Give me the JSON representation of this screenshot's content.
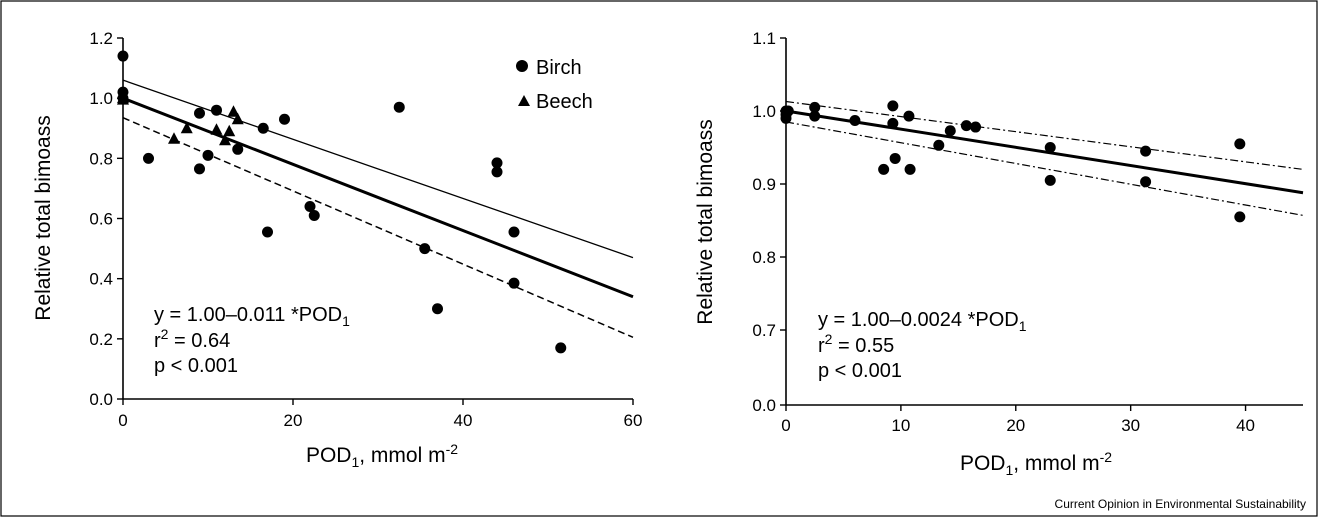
{
  "credit": "Current Opinion in Environmental Sustainability",
  "chart_data": [
    {
      "type": "scatter",
      "title": "",
      "xlabel": {
        "base": "POD",
        "sub": "1",
        "rest": ", mmol m",
        "sup": "-2"
      },
      "ylabel": "Relative total bimoass",
      "xlim": [
        0,
        60
      ],
      "ylim": [
        0,
        1.2
      ],
      "xticks": [
        0,
        20,
        40,
        60
      ],
      "yticks": [
        "0.0",
        "0.2",
        "0.4",
        "0.6",
        "0.8",
        "1.0",
        "1.2"
      ],
      "grid": false,
      "legend_position": "top-right",
      "legend": [
        {
          "name": "Birch",
          "marker": "circle"
        },
        {
          "name": "Beech",
          "marker": "triangle"
        }
      ],
      "equation": {
        "prefix": "y = 1.00–0.011 *POD",
        "sub": "1"
      },
      "r2": {
        "label": "r",
        "sup": "2",
        "value": " = 0.64"
      },
      "p_text": "p < 0.001",
      "series": [
        {
          "name": "Birch",
          "marker": "circle",
          "points": [
            [
              0,
              1.14
            ],
            [
              0,
              1.02
            ],
            [
              0,
              1.0
            ],
            [
              3,
              0.8
            ],
            [
              9,
              0.95
            ],
            [
              9,
              0.765
            ],
            [
              10,
              0.81
            ],
            [
              11,
              0.96
            ],
            [
              13.5,
              0.83
            ],
            [
              16.5,
              0.9
            ],
            [
              17,
              0.555
            ],
            [
              19,
              0.93
            ],
            [
              22,
              0.64
            ],
            [
              22.5,
              0.61
            ],
            [
              32.5,
              0.97
            ],
            [
              35.5,
              0.5
            ],
            [
              37,
              0.3
            ],
            [
              44,
              0.785
            ],
            [
              44,
              0.755
            ],
            [
              46,
              0.555
            ],
            [
              46,
              0.385
            ],
            [
              51.5,
              0.17
            ]
          ]
        },
        {
          "name": "Beech",
          "marker": "triangle",
          "points": [
            [
              0,
              1.0
            ],
            [
              0,
              0.995
            ],
            [
              6,
              0.865
            ],
            [
              7.5,
              0.9
            ],
            [
              11,
              0.895
            ],
            [
              12,
              0.86
            ],
            [
              12.5,
              0.89
            ],
            [
              13,
              0.955
            ],
            [
              13.5,
              0.93
            ]
          ]
        }
      ],
      "fit_lines": [
        {
          "style": "solid-thick",
          "from": [
            0,
            1.0
          ],
          "to": [
            60,
            0.34
          ]
        },
        {
          "style": "solid-thin",
          "from": [
            0,
            1.06
          ],
          "to": [
            60,
            0.47
          ]
        },
        {
          "style": "dashed",
          "from": [
            0,
            0.935
          ],
          "to": [
            60,
            0.205
          ]
        }
      ]
    },
    {
      "type": "scatter",
      "title": "",
      "xlabel": {
        "base": "POD",
        "sub": "1",
        "rest": ", mmol m",
        "sup": "-2"
      },
      "ylabel": "Relative total bimoass",
      "xlim": [
        0,
        45
      ],
      "ylim_display": [
        "0.0",
        "0.7",
        "0.8",
        "0.9",
        "1.0",
        "1.1"
      ],
      "axis_break": "0.0 at bottom, then 0.7 to 1.1",
      "xticks": [
        0,
        10,
        20,
        30,
        40
      ],
      "grid": false,
      "equation": {
        "prefix": "y = 1.00–0.0024 *POD",
        "sub": "1"
      },
      "r2": {
        "label": "r",
        "sup": "2",
        "value": " = 0.55"
      },
      "p_text": "p < 0.001",
      "series": [
        {
          "name": "",
          "marker": "circle",
          "points": [
            [
              0,
              1.0
            ],
            [
              0,
              0.995
            ],
            [
              0,
              0.99
            ],
            [
              0.2,
              1.0
            ],
            [
              2.5,
              1.005
            ],
            [
              2.5,
              0.993
            ],
            [
              6,
              0.987
            ],
            [
              8.5,
              0.92
            ],
            [
              9.3,
              1.007
            ],
            [
              9.3,
              0.983
            ],
            [
              9.5,
              0.935
            ],
            [
              10.7,
              0.993
            ],
            [
              10.8,
              0.92
            ],
            [
              13.3,
              0.953
            ],
            [
              14.3,
              0.973
            ],
            [
              15.7,
              0.98
            ],
            [
              16.5,
              0.978
            ],
            [
              23,
              0.95
            ],
            [
              23,
              0.905
            ],
            [
              31.3,
              0.945
            ],
            [
              31.3,
              0.903
            ],
            [
              39.5,
              0.955
            ],
            [
              39.5,
              0.855
            ]
          ]
        }
      ],
      "fit_lines": [
        {
          "style": "solid-thick",
          "from": [
            0,
            1.0
          ],
          "to": [
            45,
            0.888
          ]
        },
        {
          "style": "dashdot-upper",
          "from": [
            0,
            1.013
          ],
          "to": [
            45,
            0.92
          ]
        },
        {
          "style": "dashdot-lower",
          "from": [
            0,
            0.985
          ],
          "to": [
            45,
            0.857
          ]
        }
      ]
    }
  ]
}
